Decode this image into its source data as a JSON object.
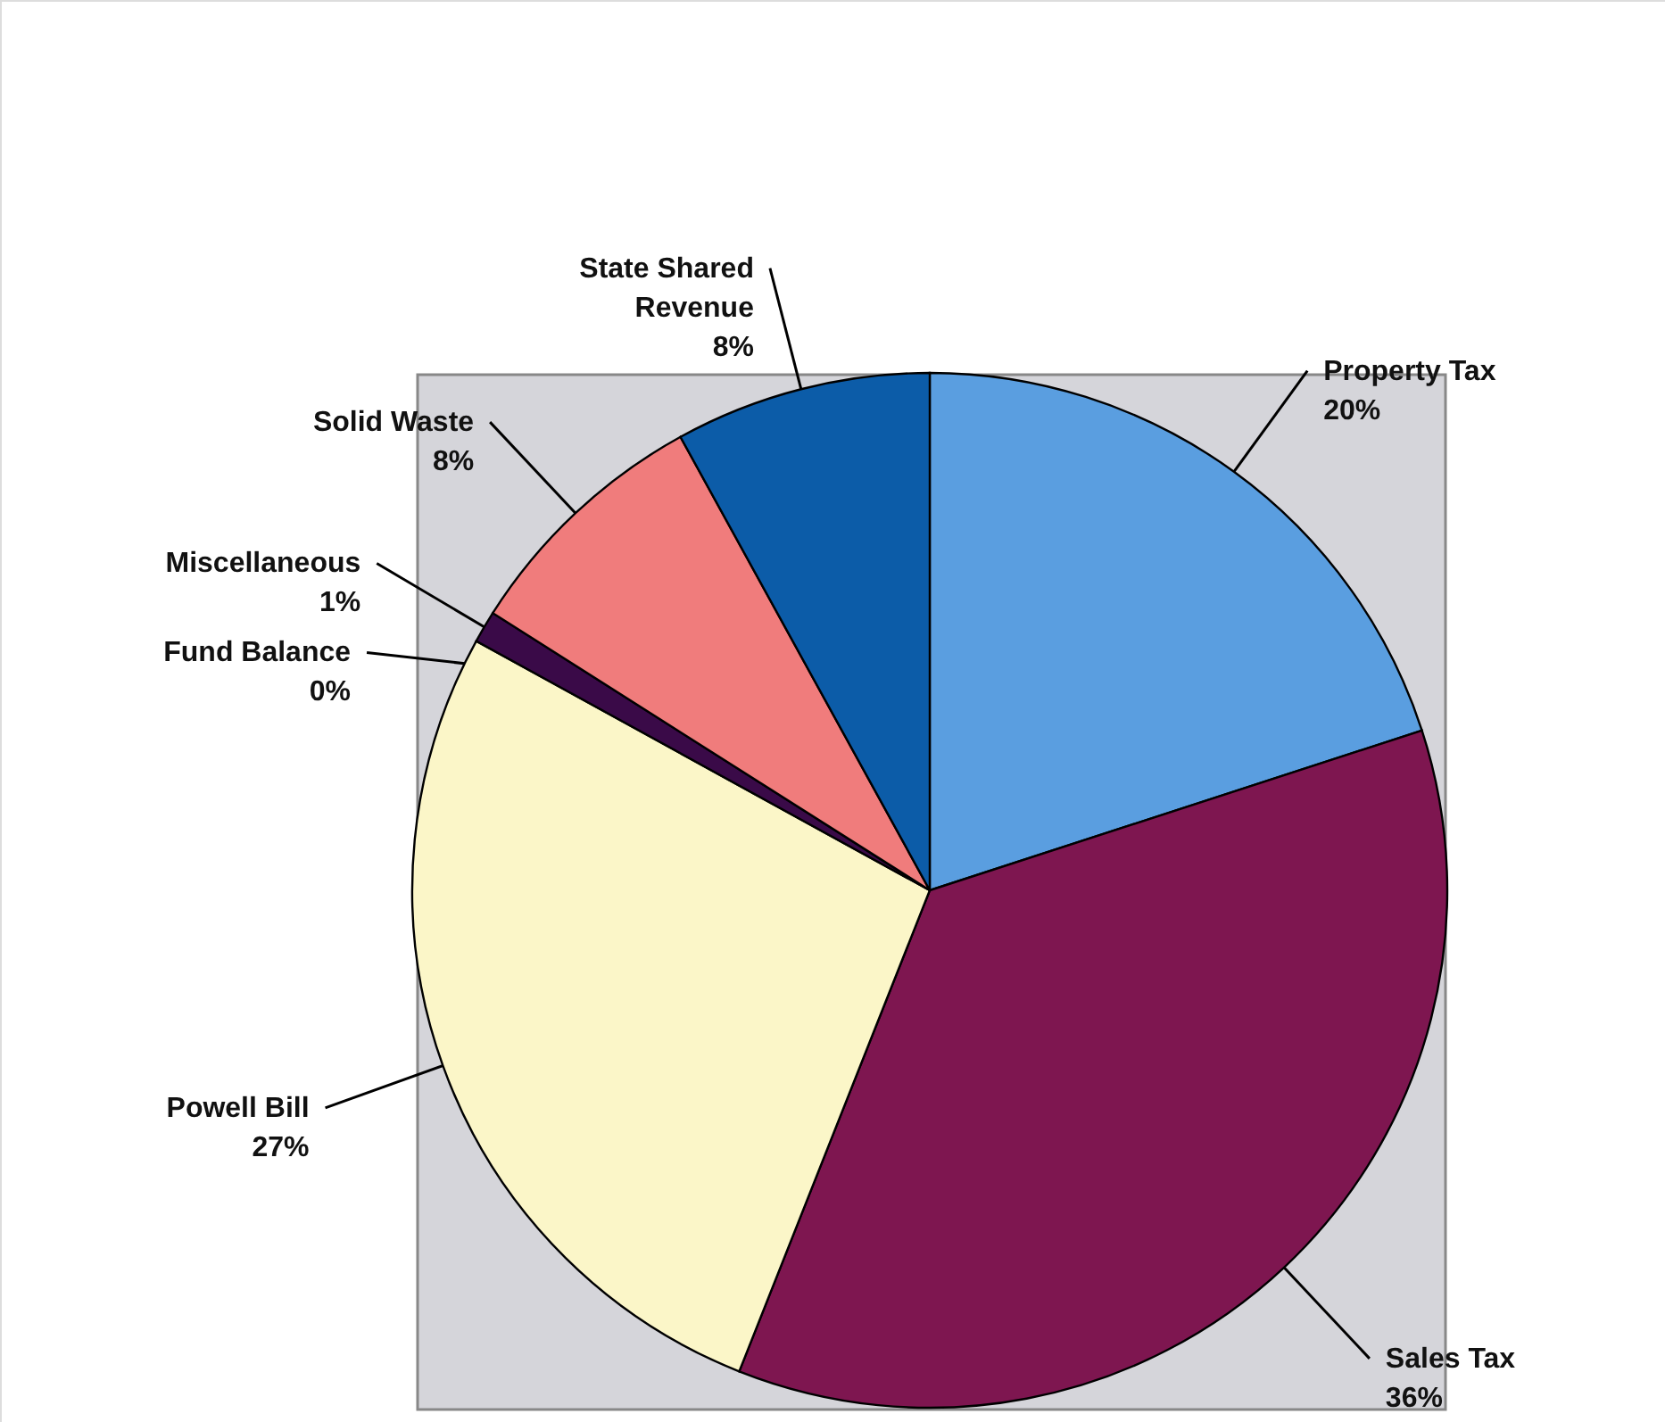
{
  "chart_data": {
    "type": "pie",
    "categories": [
      "Property Tax",
      "Sales Tax",
      "Powell Bill",
      "Fund Balance",
      "Miscellaneous",
      "Solid Waste",
      "State Shared Revenue"
    ],
    "values": [
      20,
      36,
      27,
      0,
      1,
      8,
      8
    ],
    "value_labels": [
      "20%",
      "36%",
      "27%",
      "0%",
      "1%",
      "8%",
      "8%"
    ],
    "colors": [
      "#5a9ee0",
      "#7e1650",
      "#fbf6c8",
      "#6a3f9a",
      "#3a0a48",
      "#f07c7c",
      "#0c5ca8"
    ]
  }
}
